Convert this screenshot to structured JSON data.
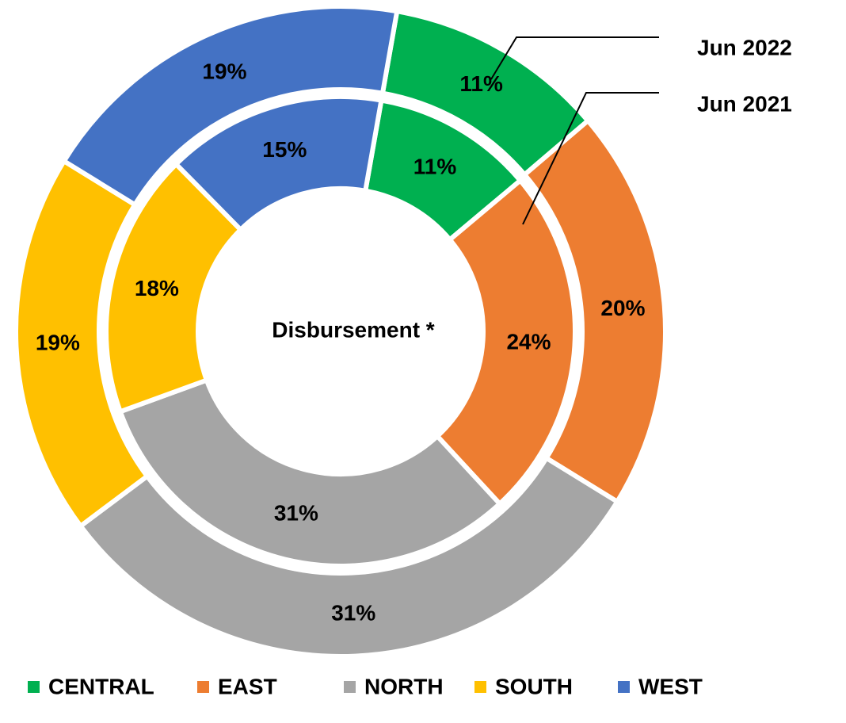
{
  "chart_data": {
    "type": "donut",
    "center_label": "Disbursement *",
    "categories": [
      "CENTRAL",
      "EAST",
      "NORTH",
      "SOUTH",
      "WEST"
    ],
    "colors": [
      "#00b050",
      "#ed7d31",
      "#a5a5a5",
      "#ffc000",
      "#4472c4"
    ],
    "series": [
      {
        "name": "Jun 2022",
        "values": [
          11,
          20,
          31,
          19,
          19
        ],
        "value_labels": [
          "11%",
          "20%",
          "31%",
          "19%",
          "19%"
        ]
      },
      {
        "name": "Jun 2021",
        "values": [
          11,
          24,
          31,
          18,
          15
        ],
        "value_labels": [
          "11%",
          "24%",
          "31%",
          "18%",
          "15%"
        ]
      }
    ],
    "legend": "bottom"
  }
}
